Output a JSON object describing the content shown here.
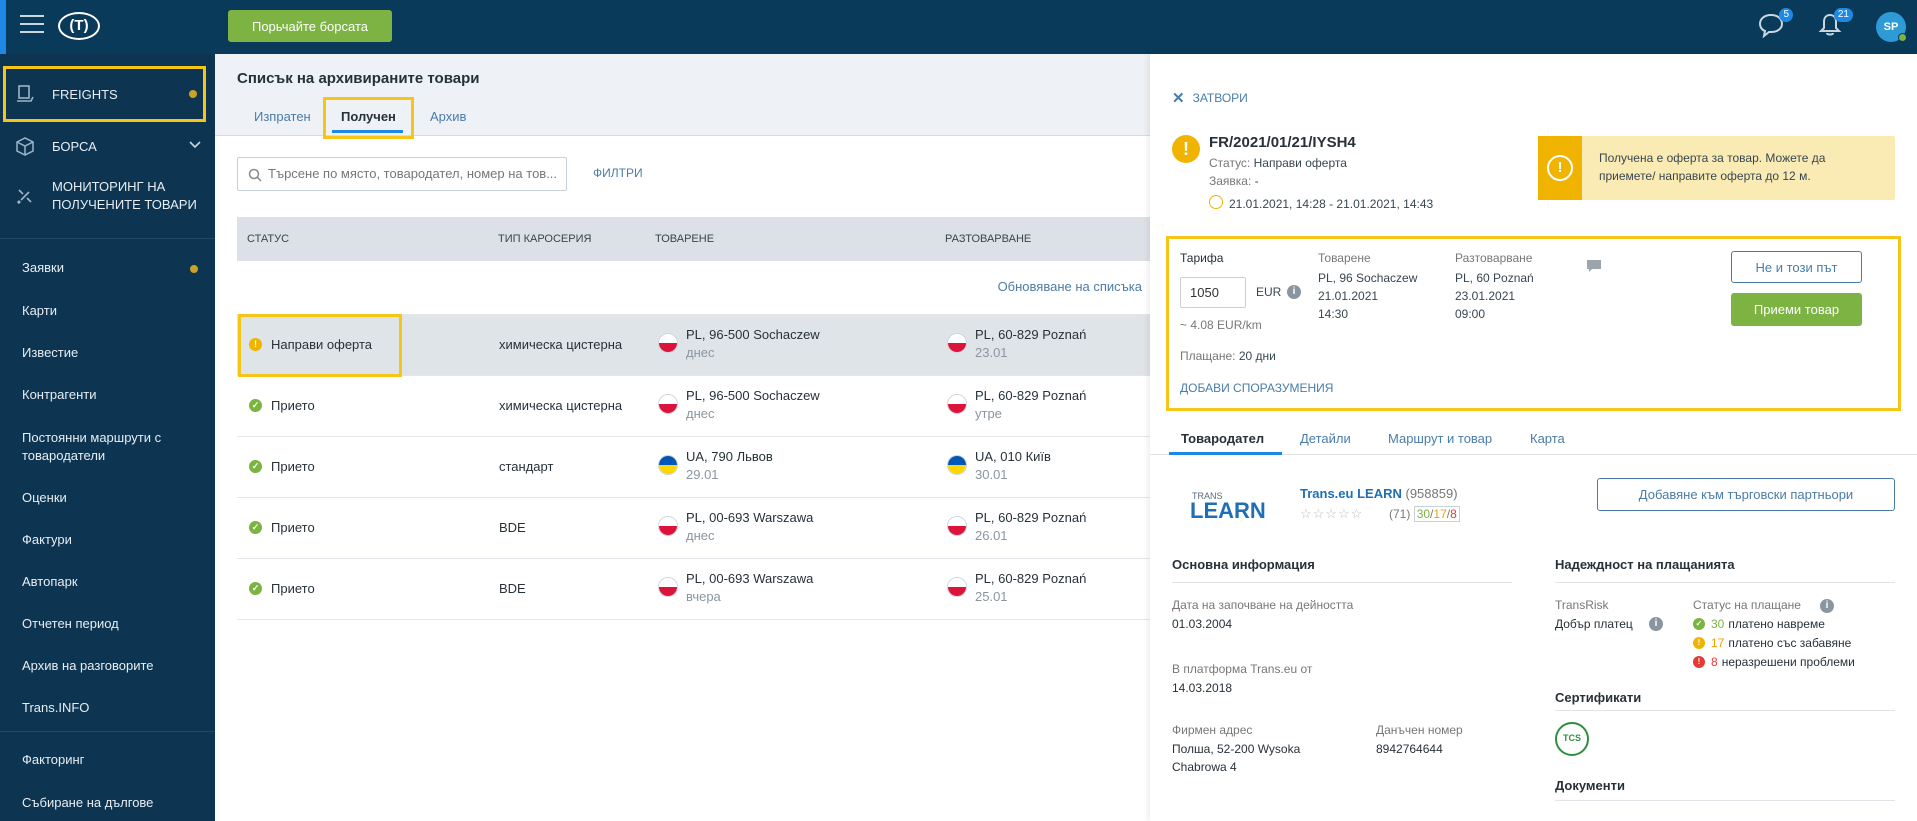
{
  "header": {
    "search_exchange_button": "Порьчайте борсата",
    "messages_badge": "5",
    "notifications_badge": "21",
    "avatar_initials": "SP",
    "logo_text": "(T)"
  },
  "sidebar": {
    "top_items": [
      {
        "label": "FREIGHTS"
      },
      {
        "label": "БОРСА"
      },
      {
        "label": "МОНИТОРИНГ НА ПОЛУЧЕНИТЕ ТОВАРИ"
      }
    ],
    "items": [
      {
        "label": "Заявки"
      },
      {
        "label": "Карти"
      },
      {
        "label": "Известие"
      },
      {
        "label": "Контрагенти"
      },
      {
        "label": "Постоянни маршрути с товародатели"
      },
      {
        "label": "Оценки"
      },
      {
        "label": "Фактури"
      },
      {
        "label": "Автопарк"
      },
      {
        "label": "Отчетен период"
      },
      {
        "label": "Архив на разговорите"
      },
      {
        "label": "Trans.INFO"
      }
    ],
    "bottom_items": [
      {
        "label": "Факторинг"
      },
      {
        "label": "Събиране на дългове"
      }
    ]
  },
  "main": {
    "title": "Списък на архивираните товари",
    "tabs": [
      {
        "label": "Изпратен"
      },
      {
        "label": "Получен"
      },
      {
        "label": "Архив"
      }
    ],
    "search_placeholder": "Търсене по място, товародател, номер на тов...",
    "filters_label": "ФИЛТРИ",
    "columns": [
      "СТАТУС",
      "ТИП КАРОСЕРИЯ",
      "ТОВАРЕНЕ",
      "РАЗТОВАРВАНЕ"
    ],
    "refresh_label": "Обновяване на списъка",
    "rows": [
      {
        "status": "Направи оферта",
        "body": "химическа цистерна",
        "load_city": "PL, 96-500 Sochaczew",
        "load_date": "днес",
        "unload_city": "PL, 60-829 Poznań",
        "unload_date": "23.01"
      },
      {
        "status": "Прието",
        "body": "химическа цистерна",
        "load_city": "PL, 96-500 Sochaczew",
        "load_date": "днес",
        "unload_city": "PL, 60-829 Poznań",
        "unload_date": "утре"
      },
      {
        "status": "Прието",
        "body": "стандарт",
        "load_city": "UA, 790 Львов",
        "load_date": "29.01",
        "unload_city": "UA, 010 Київ",
        "unload_date": "30.01"
      },
      {
        "status": "Прието",
        "body": "BDE",
        "load_city": "PL, 00-693 Warszawa",
        "load_date": "днес",
        "unload_city": "PL, 60-829 Poznań",
        "unload_date": "26.01"
      },
      {
        "status": "Прието",
        "body": "BDE",
        "load_city": "PL, 00-693 Warszawa",
        "load_date": "вчера",
        "unload_city": "PL, 60-829 Poznań",
        "unload_date": "25.01"
      }
    ]
  },
  "detail": {
    "close_label": "ЗАТВОРИ",
    "freight_id": "FR/2021/01/21/IYSH4",
    "status_label": "Статус:",
    "status_value": "Направи оферта",
    "request_label": "Заявка:",
    "request_value": "-",
    "time_range": "21.01.2021, 14:28 - 21.01.2021, 14:43",
    "alert_text": "Получена е оферта за товар. Можете да приемете/ направите оферта до 12 м.",
    "tariff_label": "Тарифа",
    "tariff_value": "1050",
    "currency": "EUR",
    "per_km": "~ 4.08  EUR/km",
    "payment_label": "Плащане:",
    "payment_value": "20 дни",
    "add_terms_label": "ДОБАВИ СПОРАЗУМЕНИЯ",
    "loading_label": "Товарене",
    "loading_place": "PL, 96 Sochaczew",
    "loading_date": "21.01.2021",
    "loading_time": "14:30",
    "unloading_label": "Разтоварване",
    "unloading_place": "PL, 60 Poznań",
    "unloading_date": "23.01.2021",
    "unloading_time": "09:00",
    "reject_button": "Не и този път",
    "accept_button": "Приеми товар",
    "tabs": [
      {
        "label": "Товародател"
      },
      {
        "label": "Детайли"
      },
      {
        "label": "Маршрут и товар"
      },
      {
        "label": "Карта"
      }
    ],
    "logo_small": "TRANS",
    "logo_big": "LEARN",
    "company_name": "Trans.eu LEARN",
    "company_number": "(958859)",
    "rating_count": "(71)",
    "rating_good": "30",
    "rating_mid": "17",
    "rating_bad": "8",
    "add_partner_button": "Добавяне към търговски партньори",
    "basic_info_title": "Основна информация",
    "activity_start_label": "Дата на започване на дейността",
    "activity_start_value": "01.03.2004",
    "platform_since_label": "В платформа Trans.eu от",
    "platform_since_value": "14.03.2018",
    "address_label": "Фирмен адрес",
    "address_line1": "Полша, 52-200 Wysoka",
    "address_line2": "Chabrowa 4",
    "tax_label": "Данъчен номер",
    "tax_value": "8942764644",
    "reliability_title": "Надеждност на плащанията",
    "transrisk_label": "TransRisk",
    "transrisk_value": "Добър платец",
    "pay_status_label": "Статус на плащане",
    "paid_on_time_count": "30",
    "paid_on_time_label": "платено навреме",
    "paid_late_count": "17",
    "paid_late_label": "платено със забавяне",
    "unresolved_count": "8",
    "unresolved_label": "неразрешени проблеми",
    "certificates_title": "Сертификати",
    "cert_badge": "TCS",
    "documents_title": "Документи"
  },
  "colors": {
    "topbar": "#0a3a5a",
    "sidebar": "#0d3552",
    "accent_green": "#7cb342",
    "highlight_yellow": "#f5c518",
    "link_blue": "#4a7ca8"
  }
}
